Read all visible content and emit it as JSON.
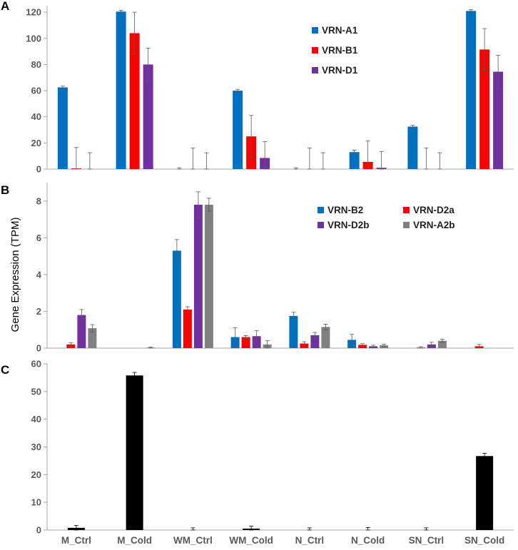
{
  "ylabel": "Gene Expression (TPM)",
  "categories": [
    "M_Ctrl",
    "M_Cold",
    "WM_Ctrl",
    "WM_Cold",
    "N_Ctrl",
    "N_Cold",
    "SN_Ctrl",
    "SN_Cold"
  ],
  "chart_data": [
    {
      "panel": "A",
      "type": "bar",
      "categories": [
        "M_Ctrl",
        "M_Cold",
        "WM_Ctrl",
        "WM_Cold",
        "N_Ctrl",
        "N_Cold",
        "SN_Ctrl",
        "SN_Cold"
      ],
      "ylim": [
        0,
        125
      ],
      "yticks": [
        0,
        20,
        40,
        60,
        80,
        100,
        120
      ],
      "legend_position": "top-right",
      "series": [
        {
          "name": "VRN-A1",
          "color": "#0070C0",
          "values": [
            62.5,
            120.5,
            0,
            60,
            0,
            13,
            32.5,
            121
          ],
          "errors": [
            1,
            1,
            1,
            1,
            1,
            1.5,
            1,
            1
          ]
        },
        {
          "name": "VRN-B1",
          "color": "#FF0000",
          "values": [
            0.5,
            104,
            0,
            25,
            0,
            5.5,
            0,
            91.5
          ],
          "errors": [
            16,
            16,
            16,
            16,
            16,
            16,
            16,
            16
          ]
        },
        {
          "name": "VRN-D1",
          "color": "#7030A0",
          "values": [
            0,
            80,
            0,
            8.5,
            0,
            1,
            0,
            74.5
          ],
          "errors": [
            12.5,
            12.5,
            12.5,
            12.5,
            12.5,
            12.5,
            12.5,
            12.5
          ]
        }
      ]
    },
    {
      "panel": "B",
      "type": "bar",
      "categories": [
        "M_Ctrl",
        "M_Cold",
        "WM_Ctrl",
        "WM_Cold",
        "N_Ctrl",
        "N_Cold",
        "SN_Ctrl",
        "SN_Cold"
      ],
      "ylim": [
        0,
        9
      ],
      "yticks": [
        0,
        2,
        4,
        6,
        8
      ],
      "legend_position": "top-right",
      "series": [
        {
          "name": "VRN-B2",
          "color": "#0070C0",
          "values": [
            0,
            0,
            5.3,
            0.6,
            1.75,
            0.45,
            0,
            0
          ],
          "errors": [
            0,
            0,
            0.6,
            0.5,
            0.2,
            0.3,
            0,
            0
          ]
        },
        {
          "name": "VRN-D2a",
          "color": "#FF0000",
          "values": [
            0.2,
            0,
            2.1,
            0.6,
            0.25,
            0.18,
            0.03,
            0.1
          ],
          "errors": [
            0.1,
            0,
            0.15,
            0.08,
            0.1,
            0.06,
            0.05,
            0.1
          ]
        },
        {
          "name": "VRN-D2b",
          "color": "#7030A0",
          "values": [
            1.8,
            0,
            7.8,
            0.65,
            0.7,
            0.1,
            0.2,
            0
          ],
          "errors": [
            0.3,
            0,
            0.7,
            0.3,
            0.15,
            0.06,
            0.12,
            0
          ]
        },
        {
          "name": "VRN-A2b",
          "color": "#808080",
          "values": [
            1.08,
            0.03,
            7.8,
            0.2,
            1.15,
            0.15,
            0.4,
            0
          ],
          "errors": [
            0.2,
            0.03,
            0.35,
            0.2,
            0.15,
            0.06,
            0.08,
            0
          ]
        }
      ]
    },
    {
      "panel": "C",
      "type": "bar",
      "categories": [
        "M_Ctrl",
        "M_Cold",
        "WM_Ctrl",
        "WM_Cold",
        "N_Ctrl",
        "N_Cold",
        "SN_Ctrl",
        "SN_Cold"
      ],
      "ylim": [
        0,
        60
      ],
      "yticks": [
        0,
        10,
        20,
        30,
        40,
        50,
        60
      ],
      "series": [
        {
          "name": "",
          "color": "#000000",
          "values": [
            0.8,
            55.8,
            0,
            0.5,
            0,
            0,
            0,
            26.7
          ],
          "errors": [
            0.9,
            1.1,
            0.8,
            0.9,
            0.8,
            0.9,
            0.8,
            1.0
          ]
        }
      ]
    }
  ]
}
